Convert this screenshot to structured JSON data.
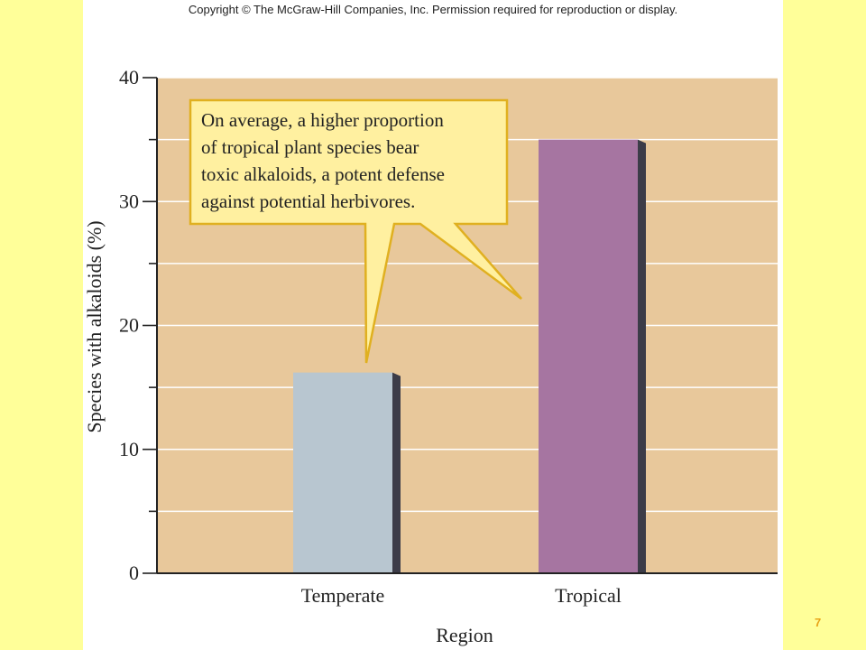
{
  "copyright": "Copyright © The McGraw-Hill Companies, Inc. Permission required for reproduction or display.",
  "page_number": "7",
  "colors": {
    "page_background": "#FFFF99",
    "panel_background": "#FFFFFF",
    "plot_background": "#E8C89B",
    "temperate_bar": "#B8C6D0",
    "tropical_bar": "#A675A1",
    "callout_fill": "#FFF0A0",
    "callout_stroke": "#E0B020"
  },
  "chart_data": {
    "type": "bar",
    "categories": [
      "Temperate",
      "Tropical"
    ],
    "values": [
      16.2,
      35
    ],
    "xlabel": "Region",
    "ylabel": "Species with alkaloids (%)",
    "ylim": [
      0,
      40
    ],
    "yticks": [
      0,
      10,
      20,
      30,
      40
    ],
    "grid": true,
    "annotation": {
      "lines": [
        "On average, a higher proportion",
        "of tropical plant species bear",
        "toxic alkaloids, a potent defense",
        "against potential herbivores."
      ],
      "points_to": [
        "Temperate",
        "Tropical"
      ]
    }
  }
}
